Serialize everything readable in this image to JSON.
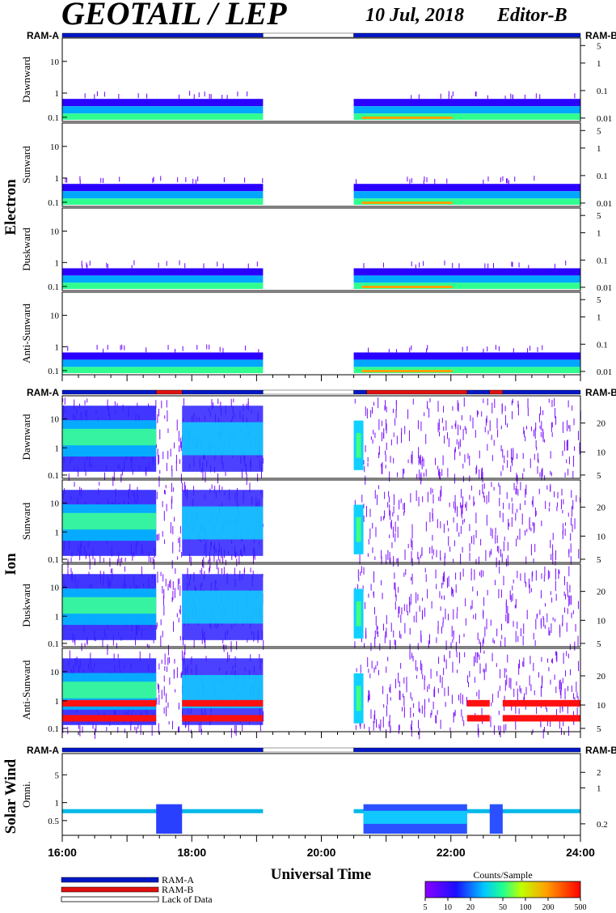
{
  "header": {
    "title": "GEOTAIL / LEP",
    "date": "10 Jul, 2018",
    "editor": "Editor-B"
  },
  "ram_labels": {
    "left": "RAM-A",
    "right": "RAM-B"
  },
  "group_labels": {
    "electron": "Electron",
    "ion": "Ion",
    "solar_wind": "Solar Wind"
  },
  "x_axis": {
    "title": "Universal Time",
    "ticks": [
      "16:00",
      "18:00",
      "20:00",
      "22:00",
      "24:00"
    ],
    "range_hours": [
      16,
      24
    ]
  },
  "legend": {
    "ram_a": "RAM-A",
    "ram_b": "RAM-B",
    "lack": "Lack of Data",
    "colors": {
      "ram_a": "#0018c8",
      "ram_b": "#e01010"
    }
  },
  "colorbar": {
    "title": "Counts/Sample",
    "ticks": [
      "5",
      "10",
      "20",
      "50",
      "100",
      "200",
      "500"
    ]
  },
  "chart_data": [
    {
      "type": "heatmap",
      "group": "Electron",
      "ylabel": "Dawnward",
      "left_ticks": [
        "10",
        "1",
        "0.1"
      ],
      "right_ticks": [
        "5",
        "1",
        "0.1",
        "0.01"
      ],
      "data_intervals_hours": [
        [
          16.0,
          19.1
        ],
        [
          20.5,
          24.0
        ]
      ],
      "ram": "RAM-A"
    },
    {
      "type": "heatmap",
      "group": "Electron",
      "ylabel": "Sunward",
      "left_ticks": [
        "10",
        "1",
        "0.1"
      ],
      "right_ticks": [
        "5",
        "1",
        "0.1",
        "0.01"
      ],
      "data_intervals_hours": [
        [
          16.0,
          19.1
        ],
        [
          20.5,
          24.0
        ]
      ]
    },
    {
      "type": "heatmap",
      "group": "Electron",
      "ylabel": "Duskward",
      "left_ticks": [
        "10",
        "1",
        "0.1"
      ],
      "right_ticks": [
        "5",
        "1",
        "0.1",
        "0.01"
      ],
      "data_intervals_hours": [
        [
          16.0,
          19.1
        ],
        [
          20.5,
          24.0
        ]
      ]
    },
    {
      "type": "heatmap",
      "group": "Electron",
      "ylabel": "Anti-Sunward",
      "left_ticks": [
        "10",
        "1",
        "0.1"
      ],
      "right_ticks": [
        "5",
        "1",
        "0.1",
        "0.01"
      ],
      "data_intervals_hours": [
        [
          16.0,
          19.1
        ],
        [
          20.5,
          24.0
        ]
      ]
    },
    {
      "type": "heatmap",
      "group": "Ion",
      "ylabel": "Dawnward",
      "left_ticks": [
        "10",
        "1",
        "0.1"
      ],
      "right_ticks": [
        "20",
        "10",
        "5"
      ],
      "data_intervals_hours": [
        [
          16.0,
          19.1
        ],
        [
          20.5,
          24.0
        ]
      ]
    },
    {
      "type": "heatmap",
      "group": "Ion",
      "ylabel": "Sunward",
      "left_ticks": [
        "10",
        "1",
        "0.1"
      ],
      "right_ticks": [
        "20",
        "10",
        "5"
      ],
      "data_intervals_hours": [
        [
          16.0,
          19.1
        ],
        [
          20.5,
          24.0
        ]
      ]
    },
    {
      "type": "heatmap",
      "group": "Ion",
      "ylabel": "Duskward",
      "left_ticks": [
        "10",
        "1",
        "0.1"
      ],
      "right_ticks": [
        "20",
        "10",
        "5"
      ],
      "data_intervals_hours": [
        [
          16.0,
          19.1
        ],
        [
          20.5,
          24.0
        ]
      ]
    },
    {
      "type": "heatmap",
      "group": "Ion",
      "ylabel": "Anti-Sunward",
      "left_ticks": [
        "10",
        "1",
        "0.1"
      ],
      "right_ticks": [
        "20",
        "10",
        "5"
      ],
      "data_intervals_hours": [
        [
          16.0,
          19.1
        ],
        [
          20.5,
          24.0
        ]
      ]
    },
    {
      "type": "heatmap",
      "group": "Solar Wind",
      "ylabel": "Omni.",
      "left_ticks": [
        "5",
        "1",
        "0.5"
      ],
      "right_ticks": [
        "2",
        "1",
        "0.2"
      ],
      "data_intervals_hours": [
        [
          16.0,
          19.1
        ],
        [
          20.5,
          24.0
        ]
      ]
    }
  ],
  "ram_bars": {
    "electron": [
      {
        "from": 16.0,
        "to": 19.1,
        "ram": "A"
      },
      {
        "from": 19.1,
        "to": 20.5,
        "ram": "none"
      },
      {
        "from": 20.5,
        "to": 24.0,
        "ram": "A"
      }
    ],
    "ion": [
      {
        "from": 16.0,
        "to": 17.45,
        "ram": "A"
      },
      {
        "from": 17.45,
        "to": 17.85,
        "ram": "B"
      },
      {
        "from": 17.85,
        "to": 19.1,
        "ram": "A"
      },
      {
        "from": 19.1,
        "to": 20.5,
        "ram": "none"
      },
      {
        "from": 20.5,
        "to": 20.7,
        "ram": "A"
      },
      {
        "from": 20.7,
        "to": 22.25,
        "ram": "B"
      },
      {
        "from": 22.25,
        "to": 22.6,
        "ram": "A"
      },
      {
        "from": 22.6,
        "to": 22.8,
        "ram": "B"
      },
      {
        "from": 22.8,
        "to": 24.0,
        "ram": "A"
      }
    ],
    "solar_wind": [
      {
        "from": 16.0,
        "to": 19.1,
        "ram": "A"
      },
      {
        "from": 19.1,
        "to": 20.5,
        "ram": "none"
      },
      {
        "from": 20.5,
        "to": 24.0,
        "ram": "A"
      }
    ]
  }
}
